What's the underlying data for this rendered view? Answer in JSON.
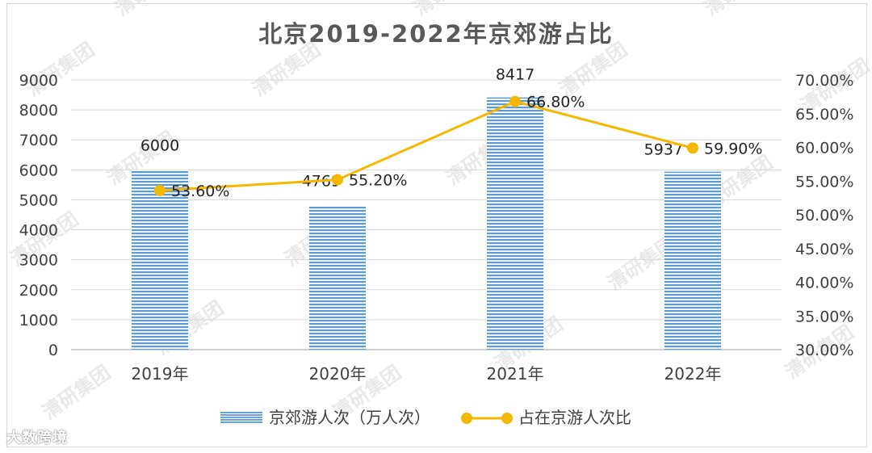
{
  "chart_data": {
    "type": "bar+line",
    "title": "北京2019-2022年京郊游占比",
    "categories": [
      "2019年",
      "2020年",
      "2021年",
      "2022年"
    ],
    "series": [
      {
        "name": "京郊游人次（万人次）",
        "type": "bar",
        "axis": "left",
        "values": [
          6000,
          4769,
          8417,
          5937
        ],
        "labels": [
          "6000",
          "4769",
          "8417",
          "5937"
        ],
        "color": "#5b9bd5"
      },
      {
        "name": "占在京游人次比",
        "type": "line",
        "axis": "right",
        "values": [
          53.6,
          55.2,
          66.8,
          59.9
        ],
        "labels": [
          "53.60%",
          "55.20%",
          "66.80%",
          "59.90%"
        ],
        "color": "#f5b800"
      }
    ],
    "y_left": {
      "min": 0,
      "max": 9000,
      "step": 1000,
      "ticks": [
        "0",
        "1000",
        "2000",
        "3000",
        "4000",
        "5000",
        "6000",
        "7000",
        "8000",
        "9000"
      ]
    },
    "y_right": {
      "min": 30,
      "max": 70,
      "step": 5,
      "ticks": [
        "30.00%",
        "35.00%",
        "40.00%",
        "45.00%",
        "50.00%",
        "55.00%",
        "60.00%",
        "65.00%",
        "70.00%"
      ]
    },
    "grid": true,
    "legend_position": "bottom"
  },
  "watermark": {
    "corner_text": "大数跨境",
    "pattern_text": "清研集团"
  },
  "colors": {
    "bar": "#5b9bd5",
    "bar_stripe": "#ffffff",
    "line": "#f5b800",
    "grid": "#d9d9d9",
    "axis_text": "#404040",
    "title": "#595959"
  }
}
